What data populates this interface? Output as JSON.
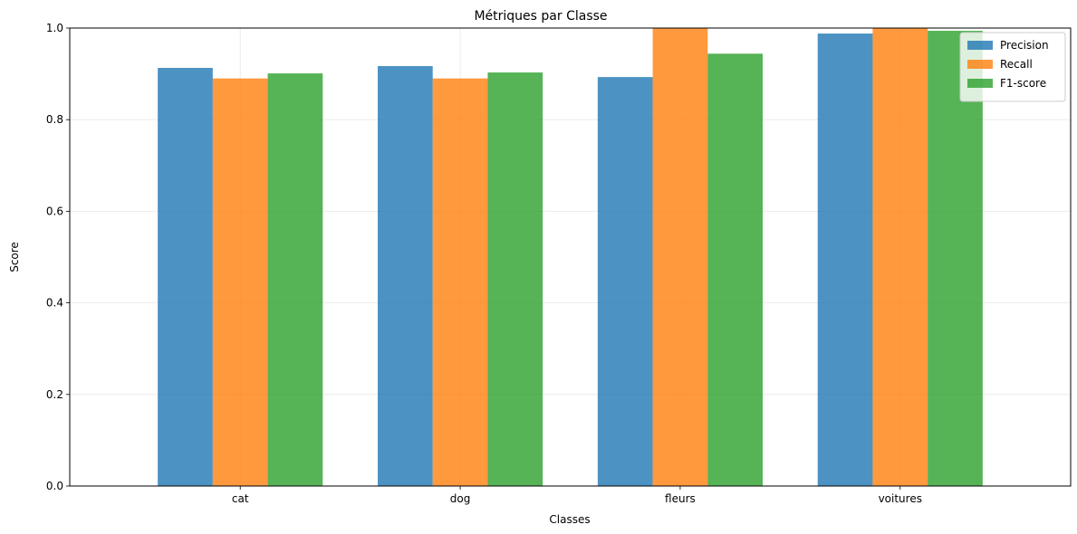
{
  "chart_data": {
    "type": "bar",
    "title": "Métriques par Classe",
    "xlabel": "Classes",
    "ylabel": "Score",
    "categories": [
      "cat",
      "dog",
      "fleurs",
      "voitures"
    ],
    "series": [
      {
        "name": "Precision",
        "color": "#1f77b4",
        "values": [
          0.913,
          0.917,
          0.893,
          0.988
        ]
      },
      {
        "name": "Recall",
        "color": "#ff7f0e",
        "values": [
          0.89,
          0.89,
          1.0,
          1.0
        ]
      },
      {
        "name": "F1-score",
        "color": "#2ca02c",
        "values": [
          0.901,
          0.903,
          0.944,
          0.994
        ]
      }
    ],
    "ylim": [
      0,
      1.0
    ],
    "yticks": [
      "0.0",
      "0.2",
      "0.4",
      "0.6",
      "0.8",
      "1.0"
    ],
    "grid": true,
    "legend_position": "top-right",
    "bar_opacity": 0.8
  }
}
